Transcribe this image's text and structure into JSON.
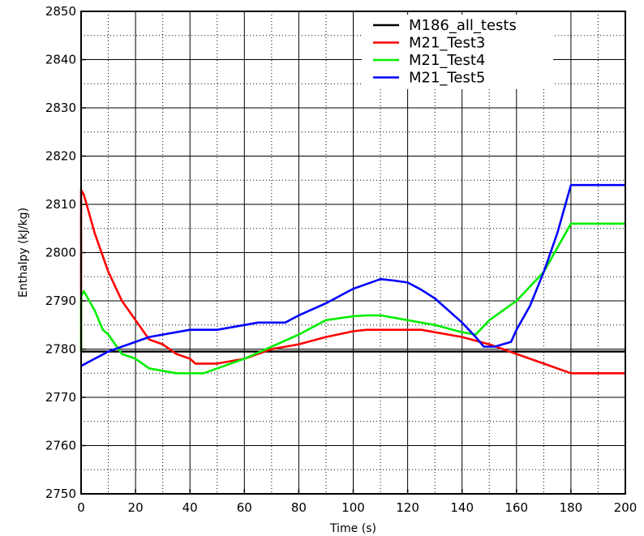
{
  "chart_data": {
    "type": "line",
    "xlabel": "Time (s)",
    "ylabel": "Enthalpy (kJ/kg)",
    "xlim": [
      0,
      200
    ],
    "ylim": [
      2750,
      2850
    ],
    "xticks": [
      0,
      20,
      40,
      60,
      80,
      100,
      120,
      140,
      160,
      180,
      200
    ],
    "yticks": [
      2750,
      2760,
      2770,
      2780,
      2790,
      2800,
      2810,
      2820,
      2830,
      2840,
      2850
    ],
    "grid": true,
    "legend_position": "top-right",
    "series": [
      {
        "name": "M186_all_tests",
        "color": "#000000",
        "x": [
          0,
          200
        ],
        "y": [
          2779.5,
          2779.5
        ]
      },
      {
        "name": "M21_Test3",
        "color": "#ff0000",
        "x": [
          0,
          0,
          1,
          5,
          10,
          15,
          20,
          25,
          30,
          35,
          40,
          42,
          50,
          60,
          70,
          80,
          90,
          100,
          105,
          110,
          120,
          125,
          130,
          140,
          150,
          155,
          160,
          170,
          180,
          185,
          200
        ],
        "y": [
          2779.5,
          2813,
          2812,
          2804,
          2796,
          2790,
          2786,
          2782,
          2781,
          2779,
          2778,
          2777,
          2777,
          2778,
          2780,
          2781,
          2782.5,
          2783.7,
          2784,
          2784,
          2784,
          2784,
          2783.5,
          2782.5,
          2781,
          2780,
          2779,
          2777,
          2775,
          2775,
          2775
        ]
      },
      {
        "name": "M21_Test4",
        "color": "#00ee00",
        "x": [
          0,
          0,
          1,
          5,
          8,
          10,
          15,
          20,
          25,
          30,
          35,
          40,
          45,
          50,
          60,
          70,
          80,
          90,
          100,
          105,
          110,
          120,
          130,
          140,
          145,
          150,
          160,
          170,
          180,
          185,
          200
        ],
        "y": [
          2779.5,
          2791,
          2792,
          2788,
          2784,
          2783,
          2779,
          2778,
          2776,
          2775.5,
          2775,
          2775,
          2775,
          2776,
          2778,
          2780.5,
          2783,
          2786,
          2786.8,
          2787,
          2787,
          2786,
          2785,
          2783.5,
          2783,
          2786,
          2790,
          2796,
          2806,
          2806,
          2806
        ]
      },
      {
        "name": "M21_Test5",
        "color": "#0000ff",
        "x": [
          0,
          5,
          10,
          15,
          20,
          25,
          30,
          35,
          40,
          45,
          50,
          60,
          65,
          70,
          75,
          80,
          90,
          100,
          105,
          110,
          115,
          120,
          125,
          130,
          140,
          145,
          148,
          152,
          158,
          160,
          165,
          170,
          175,
          178,
          180,
          185,
          200
        ],
        "y": [
          2776.5,
          2778,
          2779.5,
          2780.5,
          2781.5,
          2782.5,
          2783,
          2783.5,
          2784,
          2784,
          2784,
          2785,
          2785.5,
          2785.5,
          2785.5,
          2787,
          2789.5,
          2792.5,
          2793.5,
          2794.5,
          2794.2,
          2793.8,
          2792.3,
          2790.5,
          2785.5,
          2782.5,
          2780.5,
          2780.5,
          2781.5,
          2784,
          2789,
          2796,
          2804,
          2810,
          2814,
          2814,
          2814
        ]
      }
    ]
  }
}
